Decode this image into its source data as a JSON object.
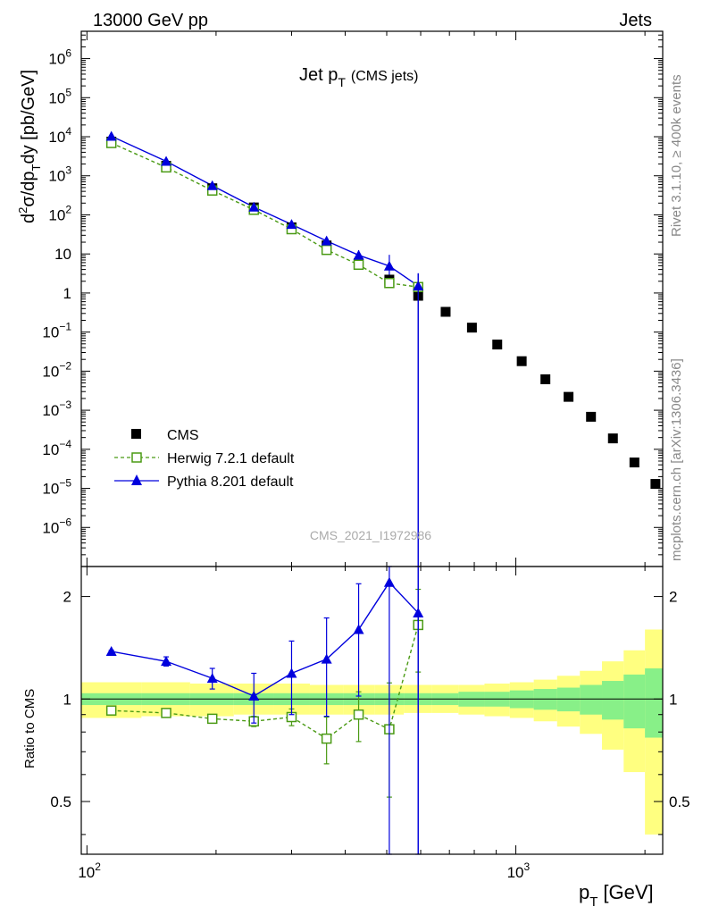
{
  "header": {
    "left": "13000 GeV pp",
    "right": "Jets"
  },
  "side": {
    "rivet": "Rivet 3.1.10, ≥ 400k events",
    "mcplots": "mcplots.cern.ch [arXiv:1306.3436]"
  },
  "chart_data": [
    {
      "type": "scatter",
      "title": {
        "main": "Jet p",
        "sub": "T",
        "suffix": "(CMS jets)"
      },
      "watermark": "CMS_2021_I1972986",
      "ylabel": "d²σ/dp_T dy [pb/GeV]",
      "yscale": "log",
      "xscale": "log",
      "ylim": [
        1e-07,
        5000000.0
      ],
      "xlim": [
        97,
        2200
      ],
      "yticks": [
        {
          "value": 1000000.0,
          "base": "10",
          "exp": "6"
        },
        {
          "value": 100000.0,
          "base": "10",
          "exp": "5"
        },
        {
          "value": 10000.0,
          "base": "10",
          "exp": "4"
        },
        {
          "value": 1000.0,
          "base": "10",
          "exp": "3"
        },
        {
          "value": 100.0,
          "base": "10",
          "exp": "2"
        },
        {
          "value": 10,
          "base": "10",
          "exp": ""
        },
        {
          "value": 1,
          "base": "1",
          "exp": ""
        },
        {
          "value": 0.1,
          "base": "10",
          "exp": "−1"
        },
        {
          "value": 0.01,
          "base": "10",
          "exp": "−2"
        },
        {
          "value": 0.001,
          "base": "10",
          "exp": "−3"
        },
        {
          "value": 0.0001,
          "base": "10",
          "exp": "−4"
        },
        {
          "value": 1e-05,
          "base": "10",
          "exp": "−5"
        },
        {
          "value": 1e-06,
          "base": "10",
          "exp": "−6"
        }
      ],
      "legend": {
        "placement": "bottom-left",
        "entries": [
          "CMS",
          "Herwig 7.2.1 default",
          "Pythia 8.201 default"
        ]
      },
      "series": [
        {
          "name": "CMS",
          "color": "#000000",
          "marker": "square",
          "x": [
            114,
            153,
            196,
            245,
            300,
            362,
            430,
            507,
            592,
            686,
            790,
            905,
            1032,
            1172,
            1327,
            1497,
            1684,
            1890,
            2116
          ],
          "y": [
            7500,
            1800,
            480,
            155,
            48,
            16.5,
            5.8,
            2.2,
            0.85,
            0.33,
            0.13,
            0.048,
            0.018,
            0.0062,
            0.0022,
            0.00068,
            0.00019,
            4.6e-05,
            1.3e-05
          ]
        },
        {
          "name": "Herwig 7.2.1 default",
          "color": "#4a9a14",
          "marker": "open-square",
          "line": "dashed",
          "x": [
            114,
            153,
            196,
            245,
            300,
            362,
            430,
            507,
            592
          ],
          "y": [
            6900,
            1640,
            420,
            135,
            43,
            12.7,
            5.3,
            1.8,
            1.42
          ]
        },
        {
          "name": "Pythia 8.201 default",
          "color": "#0000dd",
          "marker": "triangle",
          "line": "solid",
          "x": [
            114,
            153,
            196,
            245,
            300,
            362,
            430,
            507,
            592
          ],
          "y": [
            10300,
            2350,
            560,
            158,
            57,
            21.5,
            9.3,
            4.9,
            1.52
          ]
        }
      ]
    },
    {
      "type": "scatter",
      "ylabel": "Ratio to CMS",
      "xlabel": {
        "main": "p",
        "sub": "T",
        "unit": "[GeV]"
      },
      "ylim": [
        0.35,
        2.45
      ],
      "xlim": [
        97,
        2200
      ],
      "yticks": [
        0.5,
        1,
        2
      ],
      "xticks": [
        {
          "value": 100,
          "base": "10",
          "exp": "2"
        },
        {
          "value": 1000,
          "base": "10",
          "exp": "3"
        }
      ],
      "band_edges": [
        95,
        134,
        174,
        220,
        272,
        331,
        396,
        468,
        548,
        636,
        735,
        845,
        968,
        1101,
        1248,
        1410,
        1588,
        1784,
        2000,
        2200
      ],
      "band_stat_sys": [
        [
          0.88,
          1.12
        ],
        [
          0.89,
          1.12
        ],
        [
          0.89,
          1.11
        ],
        [
          0.9,
          1.11
        ],
        [
          0.9,
          1.11
        ],
        [
          0.9,
          1.1
        ],
        [
          0.9,
          1.1
        ],
        [
          0.9,
          1.1
        ],
        [
          0.91,
          1.1
        ],
        [
          0.91,
          1.1
        ],
        [
          0.9,
          1.1
        ],
        [
          0.89,
          1.11
        ],
        [
          0.88,
          1.12
        ],
        [
          0.86,
          1.14
        ],
        [
          0.83,
          1.17
        ],
        [
          0.79,
          1.21
        ],
        [
          0.71,
          1.29
        ],
        [
          0.61,
          1.39
        ],
        [
          0.4,
          1.6
        ]
      ],
      "band_stat": [
        [
          0.96,
          1.04
        ],
        [
          0.96,
          1.04
        ],
        [
          0.96,
          1.04
        ],
        [
          0.96,
          1.04
        ],
        [
          0.96,
          1.04
        ],
        [
          0.96,
          1.04
        ],
        [
          0.96,
          1.04
        ],
        [
          0.96,
          1.04
        ],
        [
          0.96,
          1.04
        ],
        [
          0.96,
          1.04
        ],
        [
          0.95,
          1.05
        ],
        [
          0.95,
          1.05
        ],
        [
          0.94,
          1.06
        ],
        [
          0.93,
          1.07
        ],
        [
          0.92,
          1.08
        ],
        [
          0.9,
          1.1
        ],
        [
          0.87,
          1.13
        ],
        [
          0.82,
          1.18
        ],
        [
          0.77,
          1.23
        ]
      ],
      "series": [
        {
          "name": "Herwig 7.2.1 default",
          "color": "#4a9a14",
          "marker": "open-square",
          "line": "dashed",
          "x": [
            114,
            153,
            196,
            245,
            300,
            362,
            430,
            507,
            592
          ],
          "y": [
            0.925,
            0.91,
            0.875,
            0.86,
            0.885,
            0.765,
            0.9,
            0.815,
            1.65
          ],
          "err": [
            0.005,
            0.01,
            0.01,
            0.03,
            0.05,
            0.12,
            0.15,
            0.3,
            0.45
          ]
        },
        {
          "name": "Pythia 8.201 default",
          "color": "#0000dd",
          "marker": "triangle",
          "line": "solid",
          "x": [
            114,
            153,
            196,
            245,
            300,
            362,
            430,
            507,
            592
          ],
          "y": [
            1.38,
            1.29,
            1.15,
            1.02,
            1.19,
            1.31,
            1.6,
            2.2,
            1.79
          ],
          "err": [
            0.01,
            0.04,
            0.08,
            0.17,
            0.29,
            0.42,
            0.58,
            2.2,
            1.79
          ]
        }
      ]
    }
  ]
}
